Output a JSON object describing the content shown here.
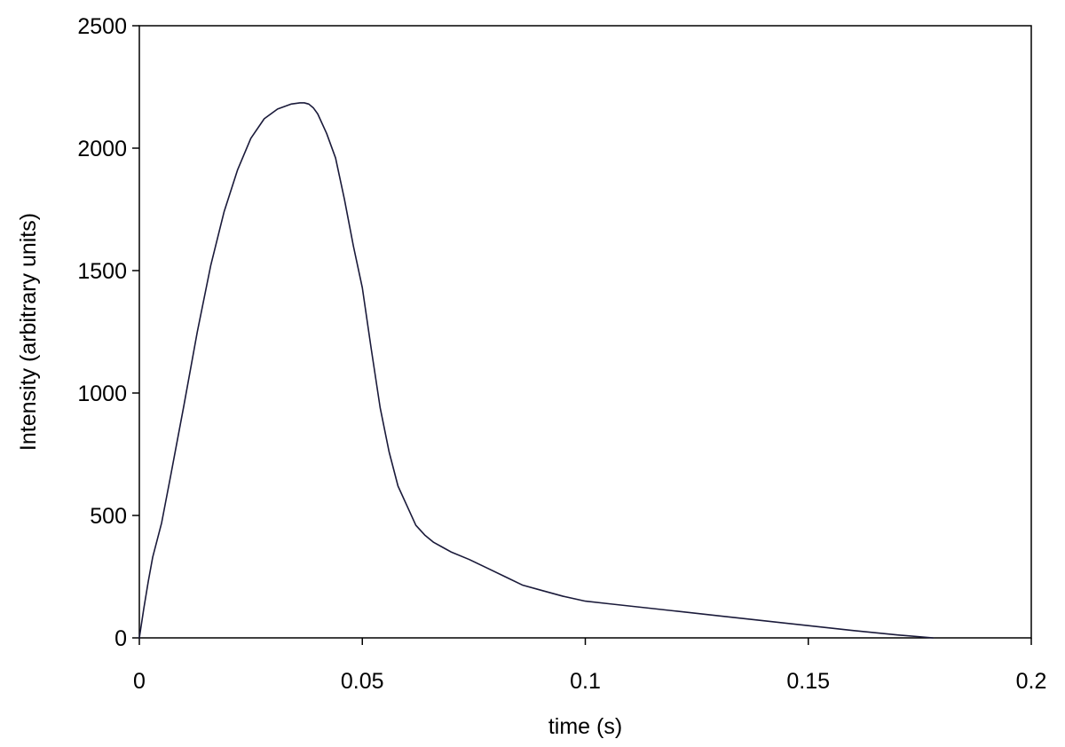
{
  "chart_data": {
    "type": "line",
    "title": "",
    "xlabel": "time (s)",
    "ylabel": "Intensity (arbitrary units)",
    "xlim": [
      0,
      0.2
    ],
    "ylim": [
      0,
      2500
    ],
    "x_ticks": [
      0,
      0.05,
      0.1,
      0.15,
      0.2
    ],
    "x_tick_labels": [
      "0",
      "0.05",
      "0.1",
      "0.15",
      "0.2"
    ],
    "y_ticks": [
      0,
      500,
      1000,
      1500,
      2000,
      2500
    ],
    "y_tick_labels": [
      "0",
      "500",
      "1000",
      "1500",
      "2000",
      "2500"
    ],
    "grid": false,
    "legend": "none",
    "line_color": "#1a1a3a",
    "axis_color": "#000000",
    "series": [
      {
        "x": [
          0,
          0.001,
          0.002,
          0.003,
          0.005,
          0.007,
          0.01,
          0.013,
          0.016,
          0.019,
          0.022,
          0.025,
          0.028,
          0.031,
          0.034,
          0.036,
          0.037,
          0.038,
          0.039,
          0.04,
          0.042,
          0.044,
          0.046,
          0.048,
          0.05,
          0.052,
          0.054,
          0.056,
          0.058,
          0.06,
          0.062,
          0.064,
          0.066,
          0.068,
          0.07,
          0.074,
          0.078,
          0.082,
          0.086,
          0.09,
          0.095,
          0.1,
          0.105,
          0.11,
          0.12,
          0.13,
          0.14,
          0.15,
          0.16,
          0.17,
          0.178
        ],
        "y": [
          0,
          120,
          230,
          330,
          470,
          660,
          950,
          1250,
          1520,
          1740,
          1910,
          2040,
          2120,
          2160,
          2180,
          2185,
          2185,
          2180,
          2165,
          2140,
          2060,
          1960,
          1790,
          1600,
          1430,
          1180,
          940,
          760,
          620,
          540,
          460,
          420,
          390,
          370,
          350,
          320,
          285,
          250,
          215,
          195,
          170,
          150,
          140,
          130,
          110,
          90,
          70,
          50,
          30,
          12,
          0
        ]
      }
    ]
  }
}
